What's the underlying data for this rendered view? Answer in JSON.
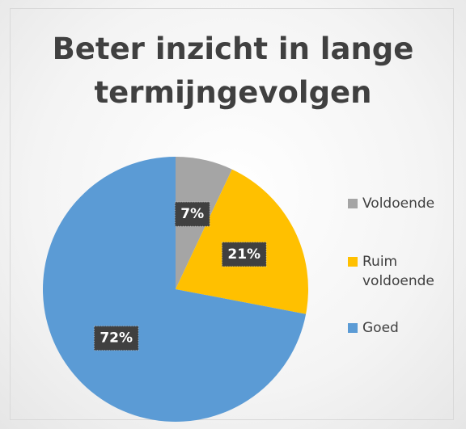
{
  "chart_data": {
    "type": "pie",
    "title": "Beter inzicht in lange termijngevolgen",
    "categories": [
      "Voldoende",
      "Ruim voldoende",
      "Goed"
    ],
    "values": [
      7,
      21,
      72
    ],
    "value_labels": [
      "7%",
      "21%",
      "72%"
    ],
    "colors": [
      "#a5a5a5",
      "#ffc000",
      "#5b9bd5"
    ],
    "legend": "right"
  }
}
